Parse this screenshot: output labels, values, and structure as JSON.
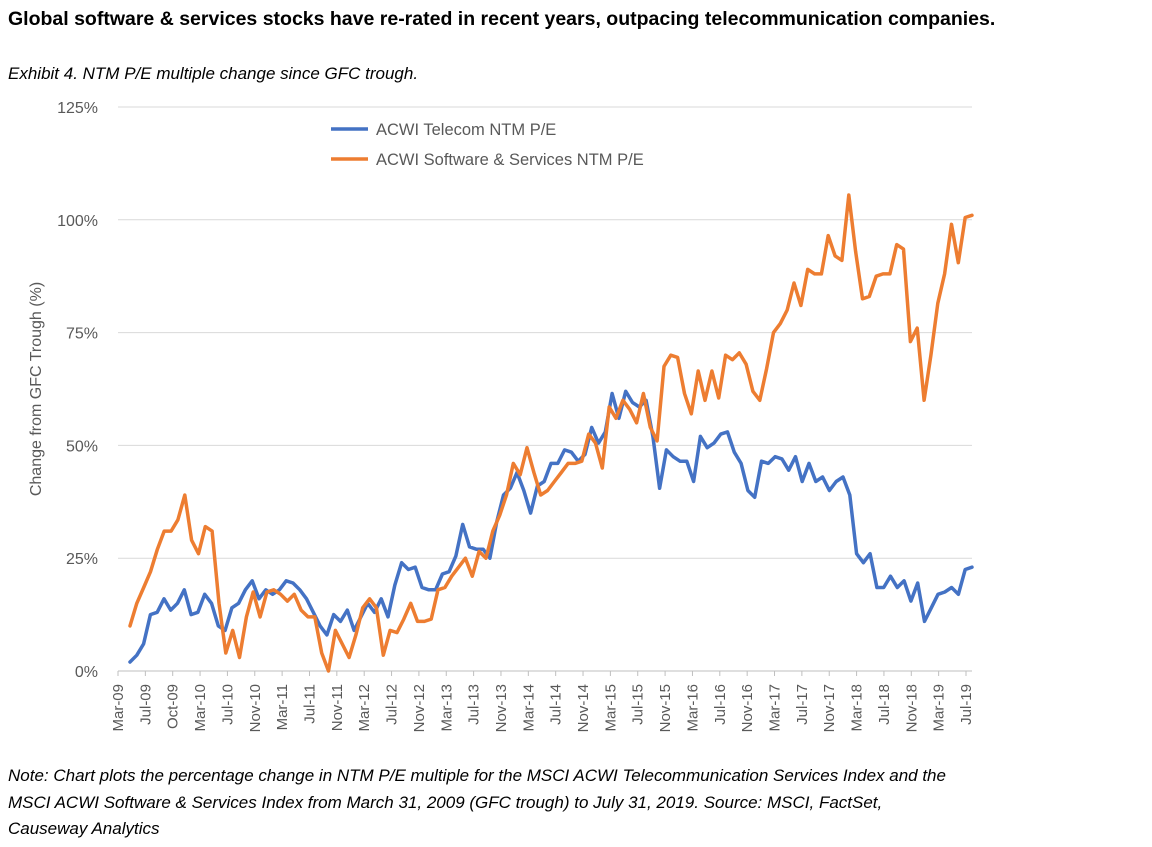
{
  "title": "Global software & services stocks have re-rated in recent years, outpacing telecommunication companies.",
  "subtitle": "Exhibit 4. NTM P/E multiple change since GFC trough.",
  "note": "Note: Chart plots the percentage change in NTM P/E multiple for the MSCI ACWI Telecommunication Services Index and the MSCI ACWI Software & Services Index from March 31, 2009 (GFC trough) to July 31, 2019. Source: MSCI, FactSet, Causeway Analytics",
  "chart_data": {
    "type": "line",
    "ylabel": "Change from GFC Trough (%)",
    "ylim": [
      0,
      125
    ],
    "yticks": [
      0,
      25,
      50,
      75,
      100,
      125
    ],
    "ytick_labels": [
      "0%",
      "25%",
      "50%",
      "75%",
      "100%",
      "125%"
    ],
    "xtick_labels": [
      "Mar-09",
      "Jul-09",
      "Oct-09",
      "Mar-10",
      "Jul-10",
      "Nov-10",
      "Mar-11",
      "Jul-11",
      "Nov-11",
      "Mar-12",
      "Jul-12",
      "Nov-12",
      "Mar-13",
      "Jul-13",
      "Nov-13",
      "Mar-14",
      "Jul-14",
      "Nov-14",
      "Mar-15",
      "Jul-15",
      "Nov-15",
      "Mar-16",
      "Jul-16",
      "Nov-16",
      "Mar-17",
      "Jul-17",
      "Nov-17",
      "Mar-18",
      "Jul-18",
      "Nov-18",
      "Mar-19",
      "Jul-19"
    ],
    "x_start": "Mar-09",
    "grid": true,
    "legend_position": "top-center",
    "series": [
      {
        "name": "ACWI Telecom NTM P/E",
        "color": "#4472C4",
        "values": [
          2,
          3.5,
          6,
          12.5,
          13,
          16,
          13.5,
          15,
          18,
          12.5,
          13,
          17,
          15,
          10,
          9,
          14,
          15,
          18,
          20,
          16,
          18,
          17,
          18,
          20,
          19.5,
          18,
          16,
          13,
          10,
          8,
          12.5,
          11,
          13.5,
          9,
          12,
          15,
          13,
          16,
          12,
          19,
          24,
          22.5,
          23,
          18.5,
          18,
          18,
          21.5,
          22,
          25.5,
          32.5,
          27.5,
          27,
          27,
          25,
          33,
          39,
          40.5,
          44,
          40,
          35,
          41,
          42,
          46,
          46,
          49,
          48.5,
          46.5,
          48,
          54,
          50.5,
          53,
          61.5,
          56,
          62,
          59.5,
          58.5,
          60,
          52,
          40.5,
          49,
          47.5,
          46.5,
          46.5,
          42,
          52,
          49.5,
          50.5,
          52.5,
          53,
          48.5,
          46,
          40,
          38.5,
          46.5,
          46,
          47.5,
          47,
          44.5,
          47.5,
          42,
          46,
          42,
          43,
          40,
          42,
          43,
          39,
          26,
          24,
          26,
          18.5,
          18.5,
          21,
          18.5,
          20,
          15.5,
          19.5,
          11,
          14,
          17,
          17.5,
          18.5,
          17,
          22.5,
          23
        ]
      },
      {
        "name": "ACWI Software & Services NTM P/E",
        "color": "#ED7D31",
        "values": [
          10,
          15,
          18.5,
          22,
          27,
          31,
          31,
          33.5,
          39,
          29,
          26,
          32,
          31,
          15,
          4,
          9,
          3,
          12,
          17.5,
          12,
          17.5,
          18,
          17,
          15.5,
          17,
          13.5,
          12,
          12,
          4,
          0,
          9,
          6,
          3,
          8,
          14,
          16,
          14,
          3.5,
          9,
          8.5,
          11.5,
          15,
          11,
          11,
          11.5,
          18,
          18.5,
          21,
          23,
          25,
          21,
          26.5,
          25,
          31,
          34.5,
          39,
          46,
          43.5,
          49.5,
          44,
          39,
          40,
          42,
          44,
          46,
          46,
          46.5,
          52.5,
          50.5,
          45,
          58.5,
          56,
          60,
          58,
          55,
          61.5,
          54,
          51,
          67.5,
          70,
          69.5,
          61.5,
          57,
          66.5,
          60,
          66.5,
          60.5,
          70,
          69,
          70.5,
          68,
          62,
          60,
          67,
          75,
          77,
          80,
          86,
          81,
          89,
          88,
          88,
          96.5,
          92,
          91,
          105.5,
          93,
          82.5,
          83,
          87.5,
          88,
          88,
          94.5,
          93.5,
          73,
          76,
          60,
          70,
          81.5,
          88,
          99,
          90.5,
          100.5,
          101
        ]
      }
    ]
  }
}
